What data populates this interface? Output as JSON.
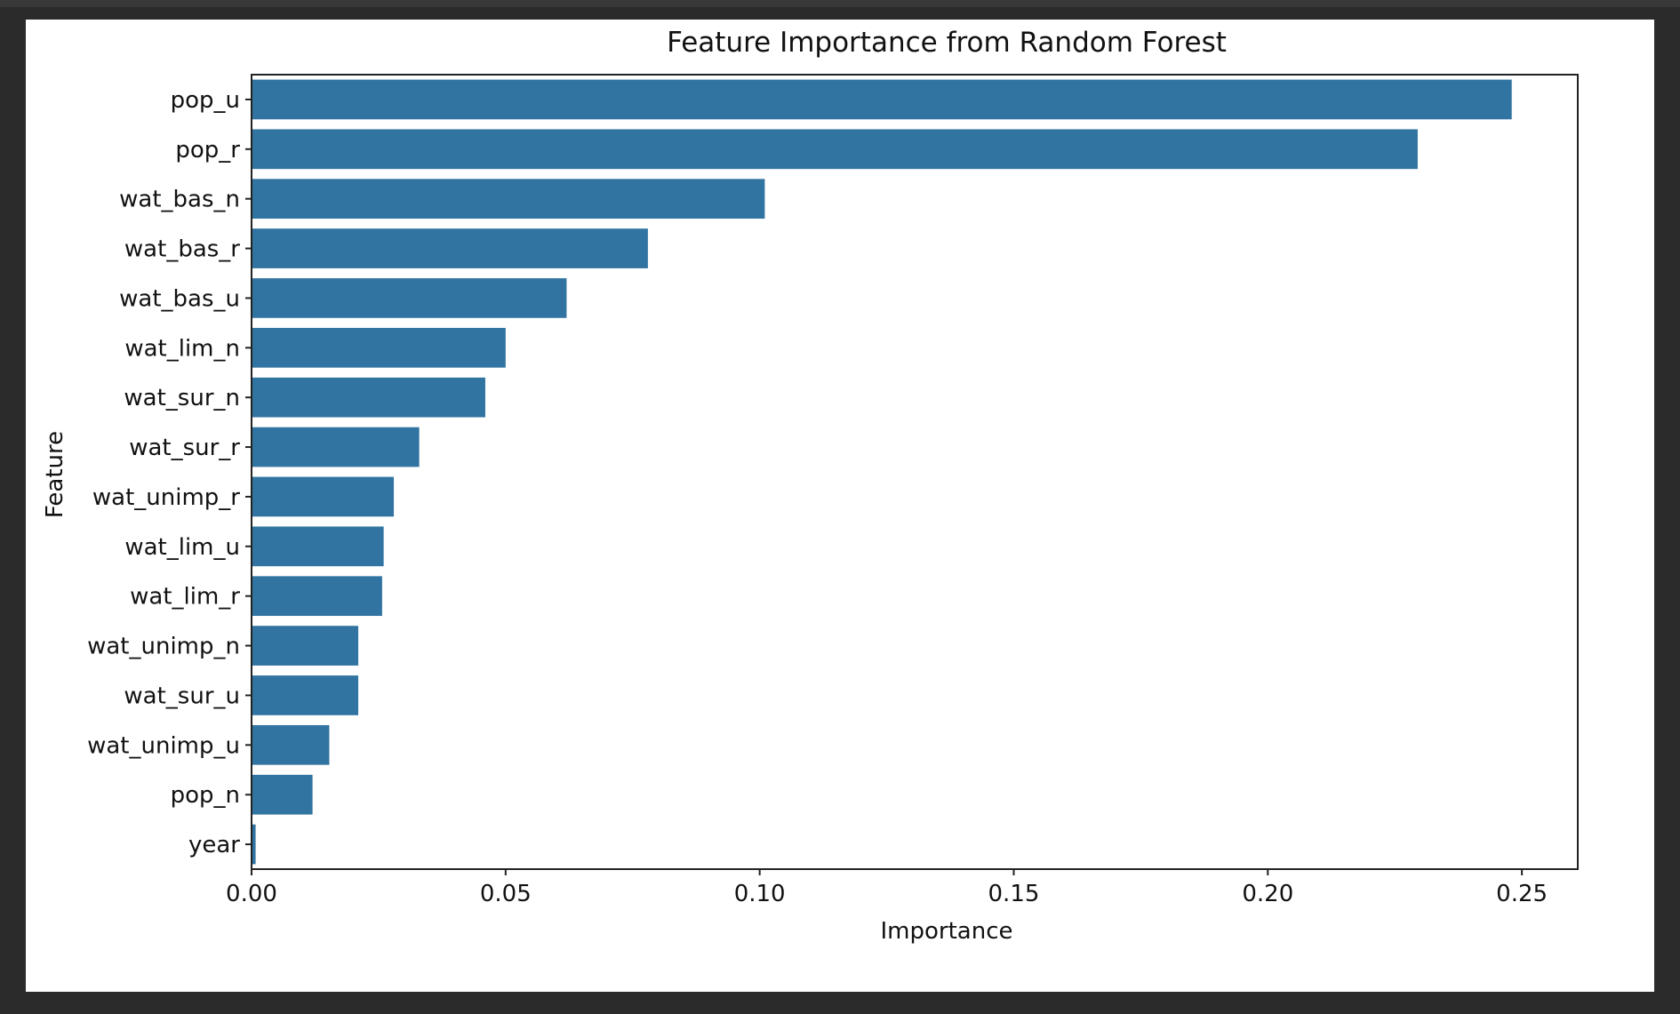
{
  "chart_data": {
    "type": "bar",
    "orientation": "horizontal",
    "title": "Feature Importance from Random Forest",
    "xlabel": "Importance",
    "ylabel": "Feature",
    "categories": [
      "pop_u",
      "pop_r",
      "wat_bas_n",
      "wat_bas_r",
      "wat_bas_u",
      "wat_lim_n",
      "wat_sur_n",
      "wat_sur_r",
      "wat_unimp_r",
      "wat_lim_u",
      "wat_lim_r",
      "wat_unimp_n",
      "wat_sur_u",
      "wat_unimp_u",
      "pop_n",
      "year"
    ],
    "values": [
      0.248,
      0.2295,
      0.101,
      0.078,
      0.062,
      0.05,
      0.046,
      0.033,
      0.028,
      0.026,
      0.0257,
      0.021,
      0.021,
      0.0153,
      0.012,
      0.0008
    ],
    "xlim": [
      0,
      0.261
    ],
    "xticks": [
      "0.00",
      "0.05",
      "0.10",
      "0.15",
      "0.20",
      "0.25"
    ],
    "xtick_values": [
      0,
      0.05,
      0.1,
      0.15,
      0.2,
      0.25
    ],
    "grid": false,
    "bar_color": "#3274a1"
  }
}
